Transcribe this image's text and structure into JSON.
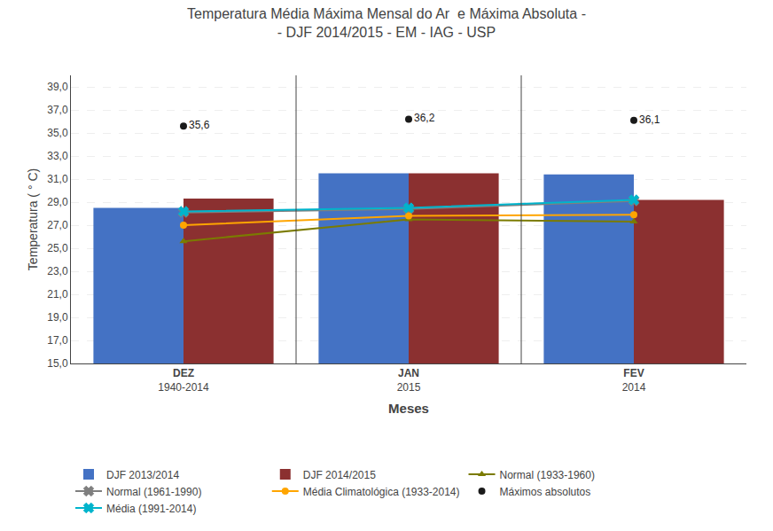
{
  "chart_data": {
    "type": "bar",
    "title": "Temperatura Média Máxima Mensal do Ar  e Máxima Absoluta -\n- DJF 2014/2015 - EM - IAG - USP",
    "xlabel": "Meses",
    "ylabel": "Temperatura ( ° C)",
    "categories": [
      "DEZ",
      "JAN",
      "FEV"
    ],
    "sublabels": [
      "1940-2014",
      "2015",
      "2014"
    ],
    "series": [
      {
        "name": "DJF 2013/2014",
        "type": "bar",
        "color": "#4472C4",
        "values": [
          28.5,
          31.5,
          31.4
        ]
      },
      {
        "name": "DJF 2014/2015",
        "type": "bar",
        "color": "#8B3030",
        "values": [
          29.3,
          31.5,
          29.2
        ]
      },
      {
        "name": "Normal (1933-1960)",
        "type": "line",
        "color": "#7B7B00",
        "marker": "triangle",
        "values": [
          25.6,
          27.5,
          27.3
        ]
      },
      {
        "name": "Normal (1961-1990)",
        "type": "line",
        "color": "#7F7F7F",
        "marker": "x",
        "values": [
          28.1,
          28.4,
          29.1
        ]
      },
      {
        "name": "Média Climatológica (1933-2014)",
        "type": "line",
        "color": "#FFA500",
        "marker": "circle",
        "values": [
          27.0,
          27.8,
          27.9
        ]
      },
      {
        "name": "Máximos absolutos",
        "type": "scatter",
        "color": "#1a1a1a",
        "marker": "circle",
        "values": [
          35.6,
          36.2,
          36.1
        ],
        "data_labels": true,
        "value_labels": [
          "35,6",
          "36,2",
          "36,1"
        ]
      },
      {
        "name": "Média (1991-2014)",
        "type": "line",
        "color": "#00B4CC",
        "marker": "x",
        "values": [
          28.2,
          28.5,
          29.2
        ]
      }
    ],
    "ylim": [
      15.0,
      40.0
    ],
    "yticks": [
      {
        "value": 15.0,
        "label": "15,0"
      },
      {
        "value": 17.0,
        "label": "17,0"
      },
      {
        "value": 19.0,
        "label": "19,0"
      },
      {
        "value": 21.0,
        "label": "21,0"
      },
      {
        "value": 23.0,
        "label": "23,0"
      },
      {
        "value": 25.0,
        "label": "25,0"
      },
      {
        "value": 27.0,
        "label": "27,0"
      },
      {
        "value": 29.0,
        "label": "29,0"
      },
      {
        "value": 31.0,
        "label": "31,0"
      },
      {
        "value": 33.0,
        "label": "33,0"
      },
      {
        "value": 35.0,
        "label": "35,0"
      },
      {
        "value": 37.0,
        "label": "37,0"
      },
      {
        "value": 39.0,
        "label": "39,0"
      }
    ],
    "grid": true,
    "legend": "lower left"
  }
}
